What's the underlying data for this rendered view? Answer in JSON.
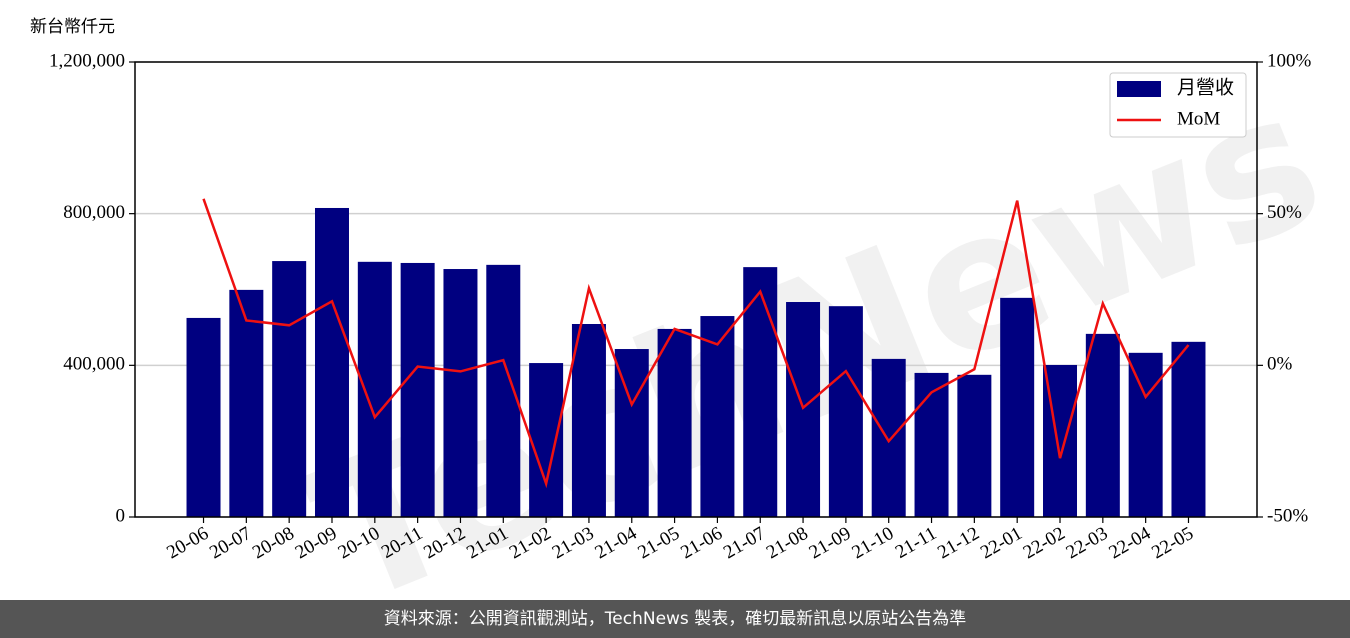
{
  "chart_data": {
    "type": "bar",
    "y_label": "新台幣仟元",
    "watermark": "TechNews",
    "source": "資料來源：公開資訊觀測站，TechNews 製表，確切最新訊息以原站公告為準",
    "categories": [
      "20-06",
      "20-07",
      "20-08",
      "20-09",
      "20-10",
      "20-11",
      "20-12",
      "21-01",
      "21-02",
      "21-03",
      "21-04",
      "21-05",
      "21-06",
      "21-07",
      "21-08",
      "21-09",
      "21-10",
      "21-11",
      "21-12",
      "22-01",
      "22-02",
      "22-03",
      "22-04",
      "22-05"
    ],
    "series": [
      {
        "name": "月營收",
        "type": "bar",
        "color": "#000080",
        "values": [
          525000,
          599000,
          675000,
          815000,
          673000,
          670000,
          654000,
          665000,
          406000,
          509000,
          443000,
          496000,
          530000,
          659000,
          567000,
          556000,
          417000,
          380000,
          375000,
          578000,
          401000,
          483000,
          433000,
          462000
        ]
      },
      {
        "name": "MoM",
        "type": "line",
        "axis": "y2",
        "color": "#ee1111",
        "values": [
          54.9,
          14.8,
          13.2,
          21.1,
          -17.1,
          -0.4,
          -2.0,
          1.7,
          -39.0,
          25.4,
          -12.9,
          12.0,
          6.9,
          24.3,
          -14.0,
          -1.9,
          -25.0,
          -8.9,
          -1.3,
          54.3,
          -30.6,
          20.4,
          -10.4,
          6.7
        ]
      }
    ],
    "ylim": [
      0,
      1200000
    ],
    "yticks": [
      0,
      {
        "value": 400000,
        "label": "400,000"
      },
      {
        "value": 800000,
        "label": "800,000"
      },
      {
        "value": 1200000,
        "label": "1,200,000"
      }
    ],
    "y2lim": [
      -50,
      100
    ],
    "y2ticks": [
      {
        "value": -50,
        "label": "-50%"
      },
      {
        "value": 0,
        "label": "0%"
      },
      {
        "value": 50,
        "label": "50%"
      },
      {
        "value": 100,
        "label": "100%"
      }
    ],
    "grid": true,
    "legend": "upper-right"
  }
}
